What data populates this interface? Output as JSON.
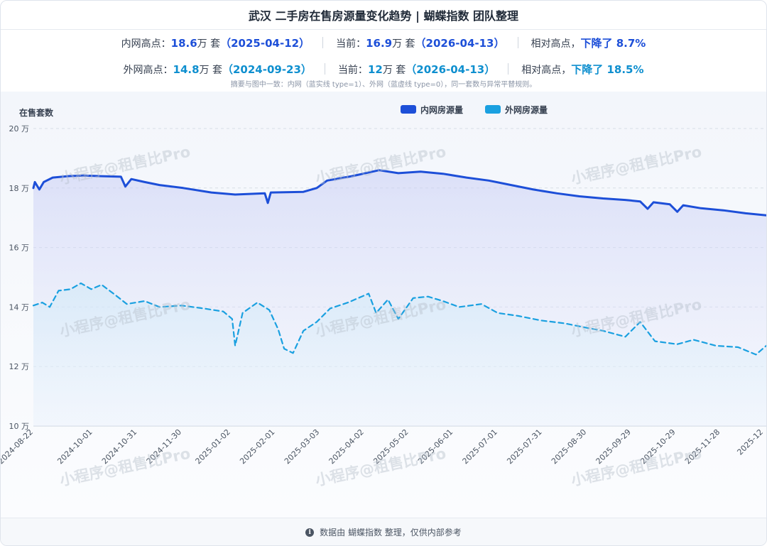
{
  "header": {
    "title": "武汉 二手房在售房源量变化趋势 | 蝴蝶指数 团队整理"
  },
  "summary": {
    "inner": {
      "high_label": "内网高点：",
      "high_value": "18.6",
      "unit": "万 套",
      "high_date": "（2025-04-12）",
      "current_label": "当前：",
      "current_value": "16.9",
      "current_date": "（2026-04-13）",
      "relative_label": "相对高点，",
      "drop": "下降了 8.7%"
    },
    "outer": {
      "high_label": "外网高点：",
      "high_value": "14.8",
      "unit": "万 套",
      "high_date": "（2024-09-23）",
      "current_label": "当前：",
      "current_value": "12",
      "current_date": "（2026-04-13）",
      "relative_label": "相对高点，",
      "drop": "下降了 18.5%"
    },
    "note": "摘要与图中一致：内网（蓝实线 type=1）、外网（蓝虚线 type=0），同一套数与异常平替规则。"
  },
  "colors": {
    "inner": "#1d4fd8",
    "outer": "#1aa0e0",
    "grid": "#d7dde6"
  },
  "watermark": "小程序@租售比Pro",
  "footer": {
    "icon": "info-icon",
    "text": "数据由 蝴蝶指数 整理，仅供内部参考"
  },
  "chart_data": {
    "type": "line",
    "ylabel": "在售套数",
    "yticks": [
      "10 万",
      "12 万",
      "14 万",
      "16 万",
      "18 万",
      "20 万"
    ],
    "ylim": [
      10,
      20
    ],
    "xticks": [
      "2024-08-22",
      "2024-10-01",
      "2024-10-31",
      "2024-11-30",
      "2025-01-02",
      "2025-02-01",
      "2025-03-03",
      "2025-04-02",
      "2025-05-02",
      "2025-06-01",
      "2025-07-01",
      "2025-07-31",
      "2025-08-30",
      "2025-09-29",
      "2025-10-29",
      "2025-11-28",
      "2025-12"
    ],
    "xlim": [
      "2024-08-22",
      "2025-12-29"
    ],
    "legend_position": "top-center",
    "grid": true,
    "series": [
      {
        "name": "内网房源量",
        "style": "solid",
        "points": [
          [
            "2024-08-22",
            18.0
          ],
          [
            "2024-08-23",
            18.2
          ],
          [
            "2024-08-26",
            17.95
          ],
          [
            "2024-08-29",
            18.2
          ],
          [
            "2024-09-04",
            18.35
          ],
          [
            "2024-09-15",
            18.4
          ],
          [
            "2024-09-25",
            18.42
          ],
          [
            "2024-10-05",
            18.4
          ],
          [
            "2024-10-20",
            18.38
          ],
          [
            "2024-10-23",
            18.05
          ],
          [
            "2024-10-27",
            18.3
          ],
          [
            "2024-11-05",
            18.2
          ],
          [
            "2024-11-15",
            18.1
          ],
          [
            "2024-12-01",
            18.0
          ],
          [
            "2024-12-20",
            17.85
          ],
          [
            "2025-01-05",
            17.78
          ],
          [
            "2025-01-25",
            17.82
          ],
          [
            "2025-01-27",
            17.5
          ],
          [
            "2025-01-29",
            17.85
          ],
          [
            "2025-02-20",
            17.87
          ],
          [
            "2025-03-01",
            18.0
          ],
          [
            "2025-03-08",
            18.25
          ],
          [
            "2025-03-25",
            18.4
          ],
          [
            "2025-04-12",
            18.6
          ],
          [
            "2025-04-25",
            18.5
          ],
          [
            "2025-05-10",
            18.55
          ],
          [
            "2025-05-25",
            18.48
          ],
          [
            "2025-06-10",
            18.35
          ],
          [
            "2025-06-25",
            18.25
          ],
          [
            "2025-07-10",
            18.1
          ],
          [
            "2025-07-25",
            17.95
          ],
          [
            "2025-08-10",
            17.82
          ],
          [
            "2025-08-25",
            17.72
          ],
          [
            "2025-09-10",
            17.65
          ],
          [
            "2025-09-25",
            17.6
          ],
          [
            "2025-10-05",
            17.55
          ],
          [
            "2025-10-10",
            17.3
          ],
          [
            "2025-10-14",
            17.52
          ],
          [
            "2025-10-25",
            17.45
          ],
          [
            "2025-10-30",
            17.2
          ],
          [
            "2025-11-03",
            17.42
          ],
          [
            "2025-11-15",
            17.32
          ],
          [
            "2025-11-30",
            17.25
          ],
          [
            "2025-12-15",
            17.15
          ],
          [
            "2025-12-29",
            17.08
          ]
        ]
      },
      {
        "name": "外网房源量",
        "style": "dashed",
        "points": [
          [
            "2024-08-22",
            14.05
          ],
          [
            "2024-08-28",
            14.15
          ],
          [
            "2024-09-02",
            14.0
          ],
          [
            "2024-09-08",
            14.55
          ],
          [
            "2024-09-16",
            14.6
          ],
          [
            "2024-09-23",
            14.8
          ],
          [
            "2024-09-30",
            14.6
          ],
          [
            "2024-10-07",
            14.75
          ],
          [
            "2024-10-15",
            14.45
          ],
          [
            "2024-10-24",
            14.1
          ],
          [
            "2024-11-05",
            14.2
          ],
          [
            "2024-11-15",
            14.0
          ],
          [
            "2024-11-30",
            14.05
          ],
          [
            "2024-12-15",
            13.95
          ],
          [
            "2024-12-28",
            13.85
          ],
          [
            "2025-01-03",
            13.6
          ],
          [
            "2025-01-05",
            12.7
          ],
          [
            "2025-01-10",
            13.8
          ],
          [
            "2025-01-20",
            14.15
          ],
          [
            "2025-01-28",
            13.9
          ],
          [
            "2025-02-03",
            13.25
          ],
          [
            "2025-02-07",
            12.6
          ],
          [
            "2025-02-13",
            12.45
          ],
          [
            "2025-02-20",
            13.2
          ],
          [
            "2025-03-01",
            13.5
          ],
          [
            "2025-03-10",
            13.95
          ],
          [
            "2025-03-22",
            14.15
          ],
          [
            "2025-04-05",
            14.45
          ],
          [
            "2025-04-10",
            13.8
          ],
          [
            "2025-04-18",
            14.25
          ],
          [
            "2025-04-25",
            13.6
          ],
          [
            "2025-05-05",
            14.3
          ],
          [
            "2025-05-15",
            14.35
          ],
          [
            "2025-05-25",
            14.2
          ],
          [
            "2025-06-05",
            14.0
          ],
          [
            "2025-06-20",
            14.1
          ],
          [
            "2025-07-01",
            13.8
          ],
          [
            "2025-07-15",
            13.7
          ],
          [
            "2025-07-30",
            13.55
          ],
          [
            "2025-08-15",
            13.45
          ],
          [
            "2025-08-30",
            13.3
          ],
          [
            "2025-09-10",
            13.2
          ],
          [
            "2025-09-25",
            13.0
          ],
          [
            "2025-10-05",
            13.5
          ],
          [
            "2025-10-15",
            12.85
          ],
          [
            "2025-10-30",
            12.75
          ],
          [
            "2025-11-10",
            12.9
          ],
          [
            "2025-11-25",
            12.7
          ],
          [
            "2025-12-10",
            12.65
          ],
          [
            "2025-12-22",
            12.4
          ],
          [
            "2025-12-29",
            12.7
          ]
        ]
      }
    ]
  }
}
